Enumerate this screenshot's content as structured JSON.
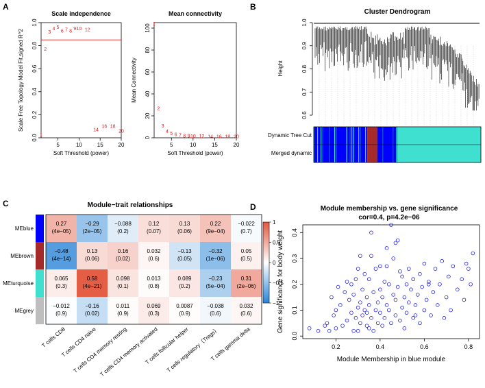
{
  "panel_letters": {
    "a": "A",
    "b": "B",
    "c": "C",
    "d": "D"
  },
  "colors": {
    "red": "#e41a1c",
    "blue": "#0000ff",
    "brown": "#a52a2a",
    "turquoise": "#40e0d0",
    "grey": "#bebebe",
    "heat_pos": "#e2583f",
    "heat_neg": "#2a84d6",
    "points": "#2020e0"
  },
  "chart_data": [
    {
      "id": "scale_independence",
      "type": "scatter",
      "title": "Scale independence",
      "xlabel": "Soft Threshold (power)",
      "ylabel": "Scale Free Topology Model Fit,signed R^2",
      "xlim": [
        1,
        20
      ],
      "ylim": [
        0,
        1
      ],
      "xticks": [
        "5",
        "10",
        "15",
        "20"
      ],
      "yticks": [
        "0.0",
        "0.2",
        "0.4",
        "0.6",
        "0.8",
        "1.0"
      ],
      "hline": 0.85,
      "points": [
        {
          "label": "1",
          "x": 1,
          "y": 0.03
        },
        {
          "label": "2",
          "x": 2,
          "y": 0.77
        },
        {
          "label": "3",
          "x": 3,
          "y": 0.92
        },
        {
          "label": "4",
          "x": 4,
          "y": 0.95
        },
        {
          "label": "5",
          "x": 5,
          "y": 0.96
        },
        {
          "label": "6",
          "x": 6,
          "y": 0.93
        },
        {
          "label": "7",
          "x": 7,
          "y": 0.94
        },
        {
          "label": "8",
          "x": 8,
          "y": 0.93
        },
        {
          "label": "9",
          "x": 9,
          "y": 0.95
        },
        {
          "label": "10",
          "x": 10,
          "y": 0.95
        },
        {
          "label": "12",
          "x": 12,
          "y": 0.94
        },
        {
          "label": "14",
          "x": 14,
          "y": 0.07
        },
        {
          "label": "16",
          "x": 16,
          "y": 0.1
        },
        {
          "label": "18",
          "x": 18,
          "y": 0.1
        },
        {
          "label": "20",
          "x": 20,
          "y": 0.06
        }
      ]
    },
    {
      "id": "mean_connectivity",
      "type": "scatter",
      "title": "Mean connectivity",
      "xlabel": "Soft Threshold (power)",
      "ylabel": "Mean Connectivity",
      "xlim": [
        1,
        20
      ],
      "ylim": [
        0,
        105
      ],
      "xticks": [
        "5",
        "10",
        "15",
        "20"
      ],
      "yticks": [
        "0",
        "20",
        "40",
        "60",
        "80",
        "100"
      ],
      "points": [
        {
          "label": "1",
          "x": 1,
          "y": 104
        },
        {
          "label": "2",
          "x": 2,
          "y": 27
        },
        {
          "label": "3",
          "x": 3,
          "y": 11
        },
        {
          "label": "4",
          "x": 4,
          "y": 6
        },
        {
          "label": "5",
          "x": 5,
          "y": 4
        },
        {
          "label": "6",
          "x": 6,
          "y": 3
        },
        {
          "label": "7",
          "x": 7,
          "y": 2.5
        },
        {
          "label": "8",
          "x": 8,
          "y": 2
        },
        {
          "label": "9",
          "x": 9,
          "y": 1.8
        },
        {
          "label": "10",
          "x": 10,
          "y": 1.7
        },
        {
          "label": "12",
          "x": 12,
          "y": 1.5
        },
        {
          "label": "14",
          "x": 14,
          "y": 1.4
        },
        {
          "label": "16",
          "x": 16,
          "y": 1.3
        },
        {
          "label": "18",
          "x": 18,
          "y": 1.2
        },
        {
          "label": "20",
          "x": 20,
          "y": 1.2
        }
      ]
    },
    {
      "id": "cluster_dendrogram",
      "type": "dendrogram",
      "title": "Cluster Dendrogram",
      "ylabel": "Height",
      "ylim": [
        0.6,
        1.0
      ],
      "yticks": [
        "0.6",
        "0.7",
        "0.8",
        "0.9",
        "1.0"
      ],
      "color_rows": [
        "Dynamic Tree Cut",
        "Merged dynamic"
      ],
      "module_fractions": [
        {
          "module": "blue",
          "fraction": 0.32
        },
        {
          "module": "brown",
          "fraction": 0.06
        },
        {
          "module": "blue",
          "fraction": 0.12
        },
        {
          "module": "turquoise",
          "fraction": 0.5
        }
      ]
    },
    {
      "id": "module_trait",
      "type": "heatmap",
      "title": "Module−trait relationships",
      "rows": [
        "MEblue",
        "MEbrown",
        "MEturquoise",
        "MEgrey"
      ],
      "columns": [
        "T cells CD8",
        "T cells CD4 naive",
        "T cells CD4 memory resting",
        "T cells CD4 memory activated",
        "T cells follicular helper",
        "T cells regulatory（Tregs）",
        "T cells gamma delta"
      ],
      "correlations": [
        [
          0.27,
          -0.29,
          -0.088,
          0.12,
          0.13,
          0.22,
          -0.022
        ],
        [
          -0.48,
          0.13,
          0.16,
          0.032,
          -0.13,
          -0.32,
          0.05
        ],
        [
          0.065,
          0.58,
          0.098,
          0.013,
          0.089,
          -0.23,
          0.31
        ],
        [
          -0.012,
          -0.16,
          0.011,
          0.069,
          0.0087,
          -0.038,
          0.032
        ]
      ],
      "cell_text": [
        [
          "0.27",
          "−0.29",
          "−0.088",
          "0.12",
          "0.13",
          "0.22",
          "−0.022"
        ],
        [
          "−0.48",
          "0.13",
          "0.16",
          "0.032",
          "−0.13",
          "−0.32",
          "0.05"
        ],
        [
          "0.065",
          "0.58",
          "0.098",
          "0.013",
          "0.089",
          "−0.23",
          "0.31"
        ],
        [
          "−0.012",
          "−0.16",
          "0.011",
          "0.069",
          "0.0087",
          "−0.038",
          "0.032"
        ]
      ],
      "p_text": [
        [
          "(4e−05)",
          "(2e−05)",
          "(0.2)",
          "(0.07)",
          "(0.06)",
          "(9e−04)",
          "(0.7)"
        ],
        [
          "(4e−14)",
          "(0.06)",
          "(0.02)",
          "(0.6)",
          "(0.05)",
          "(1e−06)",
          "(0.5)"
        ],
        [
          "(0.3)",
          "(4e−21)",
          "(0.1)",
          "(0.8)",
          "(0.2)",
          "(5e−04)",
          "(2e−06)"
        ],
        [
          "(0.9)",
          "(0.02)",
          "(0.9)",
          "(0.3)",
          "(0.9)",
          "(0.6)",
          "(0.6)"
        ]
      ],
      "row_colors": [
        "blue",
        "brown",
        "turquoise",
        "grey"
      ],
      "colorbar_ticks": [
        "1",
        "0.5",
        "0",
        "−0.5",
        "−1"
      ],
      "colorbar_range": [
        -1,
        1
      ]
    },
    {
      "id": "mm_vs_gs",
      "type": "scatter",
      "title": "Module membership vs. gene significance",
      "subtitle": "cor=0.4, p=4.2e−06",
      "xlabel": "Module Membership in blue module",
      "ylabel": "Gene significance for body weight",
      "xlim": [
        0.05,
        0.85
      ],
      "ylim": [
        -0.01,
        0.43
      ],
      "xticks": [
        "0.2",
        "0.4",
        "0.6",
        "0.8"
      ],
      "yticks": [
        "0.0",
        "0.1",
        "0.2",
        "0.3",
        "0.4"
      ],
      "x": [
        0.08,
        0.12,
        0.15,
        0.16,
        0.17,
        0.18,
        0.19,
        0.2,
        0.2,
        0.21,
        0.22,
        0.23,
        0.24,
        0.25,
        0.25,
        0.26,
        0.27,
        0.27,
        0.28,
        0.28,
        0.29,
        0.29,
        0.3,
        0.3,
        0.31,
        0.31,
        0.31,
        0.32,
        0.32,
        0.33,
        0.33,
        0.34,
        0.34,
        0.35,
        0.35,
        0.35,
        0.36,
        0.36,
        0.37,
        0.37,
        0.38,
        0.38,
        0.39,
        0.39,
        0.4,
        0.4,
        0.4,
        0.41,
        0.41,
        0.42,
        0.42,
        0.43,
        0.43,
        0.44,
        0.44,
        0.45,
        0.45,
        0.46,
        0.46,
        0.47,
        0.47,
        0.48,
        0.48,
        0.49,
        0.5,
        0.5,
        0.51,
        0.51,
        0.52,
        0.52,
        0.53,
        0.53,
        0.54,
        0.55,
        0.55,
        0.56,
        0.57,
        0.58,
        0.58,
        0.59,
        0.6,
        0.6,
        0.61,
        0.62,
        0.63,
        0.64,
        0.65,
        0.66,
        0.67,
        0.68,
        0.7,
        0.71,
        0.72,
        0.73,
        0.75,
        0.77,
        0.78,
        0.8,
        0.81,
        0.82,
        0.36,
        0.47,
        0.49,
        0.3,
        0.34,
        0.43,
        0.56,
        0.62,
        0.69,
        0.79
      ],
      "y": [
        0.03,
        0.02,
        0.04,
        0.05,
        0.02,
        0.15,
        0.08,
        0.03,
        0.1,
        0.19,
        0.12,
        0.04,
        0.17,
        0.06,
        0.21,
        0.14,
        0.09,
        0.2,
        0.02,
        0.16,
        0.07,
        0.22,
        0.11,
        0.26,
        0.05,
        0.13,
        0.31,
        0.18,
        0.08,
        0.1,
        0.24,
        0.04,
        0.15,
        0.03,
        0.12,
        0.22,
        0.4,
        0.07,
        0.17,
        0.02,
        0.1,
        0.26,
        0.05,
        0.13,
        0.09,
        0.18,
        0.27,
        0.04,
        0.15,
        0.21,
        0.07,
        0.12,
        0.34,
        0.1,
        0.2,
        0.43,
        0.05,
        0.16,
        0.3,
        0.08,
        0.14,
        0.19,
        0.37,
        0.06,
        0.11,
        0.23,
        0.15,
        0.03,
        0.2,
        0.09,
        0.13,
        0.26,
        0.18,
        0.07,
        0.22,
        0.12,
        0.16,
        0.05,
        0.24,
        0.19,
        0.1,
        0.28,
        0.14,
        0.21,
        0.08,
        0.17,
        0.26,
        0.12,
        0.2,
        0.29,
        0.15,
        0.23,
        0.1,
        0.27,
        0.18,
        0.22,
        0.14,
        0.26,
        0.2,
        0.32,
        0.31,
        0.36,
        0.25,
        0.02,
        0.09,
        0.27,
        0.08,
        0.2,
        0.07,
        0.28
      ]
    }
  ]
}
